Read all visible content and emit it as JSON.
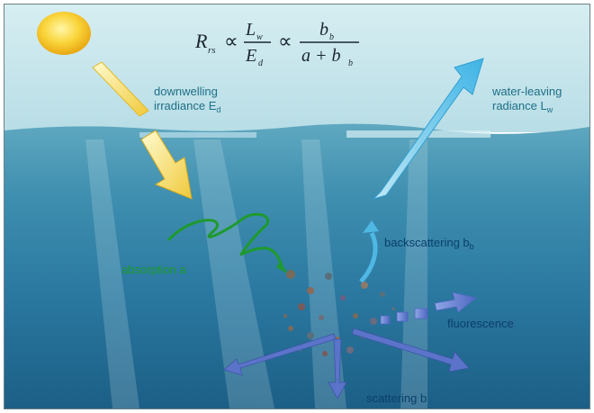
{
  "equation": {
    "lhs": "R",
    "lhs_sub": "rs",
    "prop": "∝",
    "frac1_num": "L",
    "frac1_num_sub": "w",
    "frac1_den": "E",
    "frac1_den_sub": "d",
    "frac2_num": "b",
    "frac2_num_sub": "b",
    "frac2_den": "a + b",
    "frac2_den_sub": "b"
  },
  "labels": {
    "downwelling_line1": "downwelling",
    "downwelling_line2": "irradiance E",
    "downwelling_sub": "d",
    "waterleaving_line1": "water-leaving",
    "waterleaving_line2": "radiance L",
    "waterleaving_sub": "w",
    "absorption": "absorption a",
    "backscattering": "backscattering b",
    "backscattering_sub": "b",
    "fluorescence": "fluorescence",
    "scattering": "scattering b"
  },
  "colors": {
    "sky": "#c6e4ea",
    "sea_deep": "#1f6e8c",
    "sun": "#f7c21a",
    "incoming_arrow": "#f3d64a",
    "outgoing_arrow": "#5fc6ea",
    "absorption": "#1e9a2e",
    "scatter_arrows": "#5b74c9",
    "label_text": "#0b3f6a"
  }
}
